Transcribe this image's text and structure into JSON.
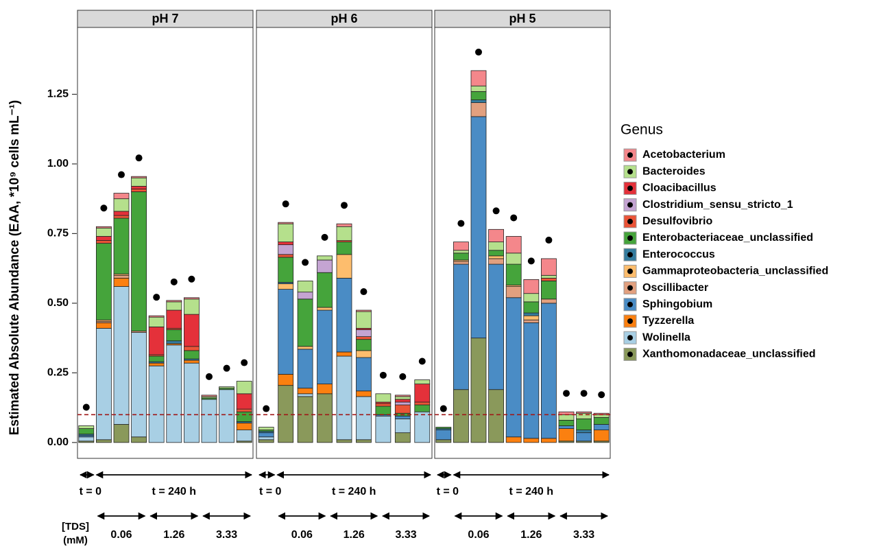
{
  "chart_data": {
    "type": "bar",
    "stacked": true,
    "ylabel": "Estimated Absolute Abundance (EAA, *10⁹ cells mL⁻¹)",
    "ylim": [
      -0.057,
      1.49
    ],
    "yticks": [
      {
        "value": 0,
        "label": "0.00"
      },
      {
        "value": 0.25,
        "label": "0.25"
      },
      {
        "value": 0.5,
        "label": "0.50"
      },
      {
        "value": 0.75,
        "label": "0.75"
      },
      {
        "value": 1,
        "label": "1.00"
      },
      {
        "value": 1.25,
        "label": "1.25"
      }
    ],
    "reference_line": 0.1,
    "reference_color": "#a01818",
    "panels": [
      "pH 7",
      "pH 6",
      "pH 5"
    ],
    "legend_title": "Genus",
    "time_labels": [
      "t = 0",
      "t = 240 h"
    ],
    "tds_title": [
      "[TDS]",
      "(mM)"
    ],
    "tds_labels": [
      "0.06",
      "1.26",
      "3.33"
    ],
    "series": [
      {
        "name": "Acetobacterium",
        "color": "#f4878b",
        "values": [
          [
            0,
            0.005,
            0.02,
            0.005,
            0.005,
            0.005,
            0.005,
            0.005,
            0,
            0
          ],
          [
            0,
            0.005,
            0,
            0,
            0.01,
            0.005,
            0,
            0.005,
            0
          ],
          [
            0,
            0.03,
            0.055,
            0.045,
            0.06,
            0.05,
            0.06,
            0.01,
            0.005,
            0.005
          ]
        ]
      },
      {
        "name": "Bacteroides",
        "color": "#b5e08c",
        "values": [
          [
            0.01,
            0.03,
            0.045,
            0.03,
            0.035,
            0.03,
            0.055,
            0.005,
            0.005,
            0.045
          ],
          [
            0.01,
            0.065,
            0.04,
            0.015,
            0.05,
            0.06,
            0.03,
            0.01,
            0.015
          ],
          [
            0,
            0.01,
            0.02,
            0.03,
            0.04,
            0.03,
            0.01,
            0.02,
            0.02,
            0.01
          ]
        ]
      },
      {
        "name": "Cloacibacillus",
        "color": "#e4313a",
        "values": [
          [
            0,
            0.015,
            0.015,
            0.01,
            0.1,
            0.065,
            0.115,
            0,
            0,
            0.055
          ],
          [
            0,
            0.01,
            0,
            0,
            0,
            0.005,
            0.005,
            0.01,
            0.065
          ],
          [
            0,
            0,
            0,
            0,
            0,
            0,
            0,
            0,
            0,
            0
          ]
        ]
      },
      {
        "name": "Clostridium_sensu_stricto_1",
        "color": "#c4a4d2",
        "values": [
          [
            0,
            0,
            0,
            0,
            0,
            0,
            0,
            0,
            0,
            0
          ],
          [
            0,
            0.035,
            0.025,
            0.045,
            0,
            0.025,
            0,
            0.01,
            0
          ],
          [
            0,
            0,
            0,
            0,
            0,
            0,
            0,
            0,
            0,
            0
          ]
        ]
      },
      {
        "name": "Desulfovibrio",
        "color": "#ea5437",
        "values": [
          [
            0,
            0.01,
            0.01,
            0.01,
            0.005,
            0.005,
            0.015,
            0,
            0,
            0.01
          ],
          [
            0,
            0.01,
            0,
            0,
            0.005,
            0.01,
            0.01,
            0.03,
            0.01
          ],
          [
            0,
            0,
            0,
            0,
            0,
            0,
            0.01,
            0,
            0,
            0
          ]
        ]
      },
      {
        "name": "Enterobacteriaceae_unclassified",
        "color": "#45a43b",
        "values": [
          [
            0.02,
            0.275,
            0.2,
            0.5,
            0.02,
            0.04,
            0.03,
            0.005,
            0.005,
            0.035
          ],
          [
            0.005,
            0.09,
            0.17,
            0.125,
            0.045,
            0.04,
            0.03,
            0.01,
            0.025
          ],
          [
            0.005,
            0.025,
            0.03,
            0.02,
            0.075,
            0.04,
            0.065,
            0.02,
            0.04,
            0.025
          ]
        ]
      },
      {
        "name": "Enterococcus",
        "color": "#347c9e",
        "values": [
          [
            0.005,
            0,
            0,
            0,
            0.005,
            0.01,
            0.005,
            0,
            0,
            0.005
          ],
          [
            0.005,
            0.005,
            0,
            0,
            0,
            0,
            0,
            0,
            0
          ],
          [
            0.005,
            0,
            0.01,
            0,
            0,
            0.01,
            0,
            0,
            0.01,
            0
          ]
        ]
      },
      {
        "name": "Gammaproteobacteria_unclassified",
        "color": "#fdbd6d",
        "values": [
          [
            0,
            0.005,
            0.005,
            0,
            0,
            0,
            0,
            0,
            0,
            0
          ],
          [
            0,
            0.02,
            0.01,
            0.01,
            0.085,
            0.025,
            0,
            0,
            0
          ],
          [
            0,
            0.005,
            0,
            0.01,
            0.005,
            0.015,
            0,
            0,
            0,
            0
          ]
        ]
      },
      {
        "name": "Oscillibacter",
        "color": "#e2a07f",
        "values": [
          [
            0,
            0.005,
            0.01,
            0.005,
            0,
            0,
            0,
            0,
            0,
            0
          ],
          [
            0,
            0,
            0,
            0,
            0,
            0,
            0,
            0,
            0
          ],
          [
            0,
            0.01,
            0.05,
            0.02,
            0.04,
            0.01,
            0.015,
            0,
            0,
            0
          ]
        ]
      },
      {
        "name": "Sphingobium",
        "color": "#4a8cc5",
        "values": [
          [
            0.005,
            0,
            0,
            0,
            0,
            0,
            0,
            0,
            0,
            0
          ],
          [
            0.015,
            0.305,
            0.14,
            0.265,
            0.265,
            0.12,
            0.005,
            0.01,
            0
          ],
          [
            0.035,
            0.45,
            0.795,
            0.45,
            0.5,
            0.415,
            0.485,
            0.01,
            0.03,
            0.02
          ]
        ]
      },
      {
        "name": "Tyzzerella",
        "color": "#fb8010",
        "values": [
          [
            0,
            0.02,
            0.03,
            0,
            0.01,
            0.005,
            0.01,
            0,
            0,
            0.025
          ],
          [
            0,
            0.04,
            0.02,
            0.035,
            0.015,
            0.02,
            0,
            0,
            0
          ],
          [
            0,
            0,
            0,
            0,
            0.02,
            0.015,
            0.015,
            0.045,
            0,
            0.04
          ]
        ]
      },
      {
        "name": "Wolinella",
        "color": "#a8cfe4",
        "values": [
          [
            0.015,
            0.4,
            0.495,
            0.375,
            0.275,
            0.35,
            0.285,
            0.155,
            0.19,
            0.04
          ],
          [
            0.01,
            0,
            0.01,
            0,
            0.3,
            0.155,
            0.095,
            0.05,
            0.11
          ],
          [
            0,
            0,
            0,
            0,
            0,
            0,
            0,
            0,
            0,
            0
          ]
        ]
      },
      {
        "name": "Xanthomonadaceae_unclassified",
        "color": "#8a995b",
        "values": [
          [
            0.005,
            0.01,
            0.065,
            0.02,
            0,
            0,
            0,
            0,
            0,
            0.005
          ],
          [
            0.01,
            0.205,
            0.165,
            0.175,
            0.01,
            0.01,
            0,
            0.035,
            0
          ],
          [
            0.01,
            0.19,
            0.375,
            0.19,
            0,
            0,
            0,
            0.005,
            0.005,
            0.005
          ]
        ]
      }
    ]
  }
}
